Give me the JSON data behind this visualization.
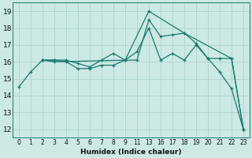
{
  "xlabel": "Humidex (Indice chaleur)",
  "background_color": "#cce9e5",
  "grid_color": "#aed4cf",
  "line_color": "#1a7a6e",
  "xtick_labels": [
    "0",
    "1",
    "2",
    "3",
    "4",
    "5",
    "6",
    "7",
    "8",
    "9",
    "11",
    "13",
    "16",
    "17",
    "18",
    "19",
    "20",
    "21",
    "22",
    "23"
  ],
  "xtick_positions": [
    0,
    1,
    2,
    3,
    4,
    5,
    6,
    7,
    8,
    9,
    10,
    11,
    12,
    13,
    14,
    15,
    16,
    17,
    18,
    19
  ],
  "xlim": [
    -0.5,
    19.5
  ],
  "ylim": [
    11.5,
    19.5
  ],
  "yticks": [
    12,
    13,
    14,
    15,
    16,
    17,
    18,
    19
  ],
  "series": [
    {
      "xpos": [
        0,
        1,
        2,
        3,
        4,
        5,
        6,
        7,
        8,
        9,
        10,
        11,
        12,
        13,
        14,
        15,
        16,
        17,
        18,
        19
      ],
      "y": [
        14.5,
        15.4,
        16.1,
        16.1,
        16.0,
        15.6,
        15.6,
        15.8,
        15.8,
        16.1,
        16.1,
        18.5,
        17.5,
        17.6,
        17.7,
        17.1,
        16.2,
        15.4,
        14.4,
        12.0
      ]
    },
    {
      "xpos": [
        2,
        3,
        4,
        5,
        6,
        7,
        8,
        9,
        10,
        11,
        12,
        13,
        14,
        15,
        16,
        17,
        18,
        19
      ],
      "y": [
        16.1,
        16.1,
        16.1,
        15.9,
        15.7,
        16.1,
        16.5,
        16.1,
        16.6,
        18.0,
        16.1,
        16.5,
        16.1,
        17.0,
        16.2,
        16.2,
        16.2,
        12.0
      ]
    },
    {
      "xpos": [
        2,
        3,
        9,
        11,
        14,
        18,
        19
      ],
      "y": [
        16.1,
        16.0,
        16.1,
        19.0,
        17.7,
        16.2,
        12.0
      ]
    }
  ]
}
